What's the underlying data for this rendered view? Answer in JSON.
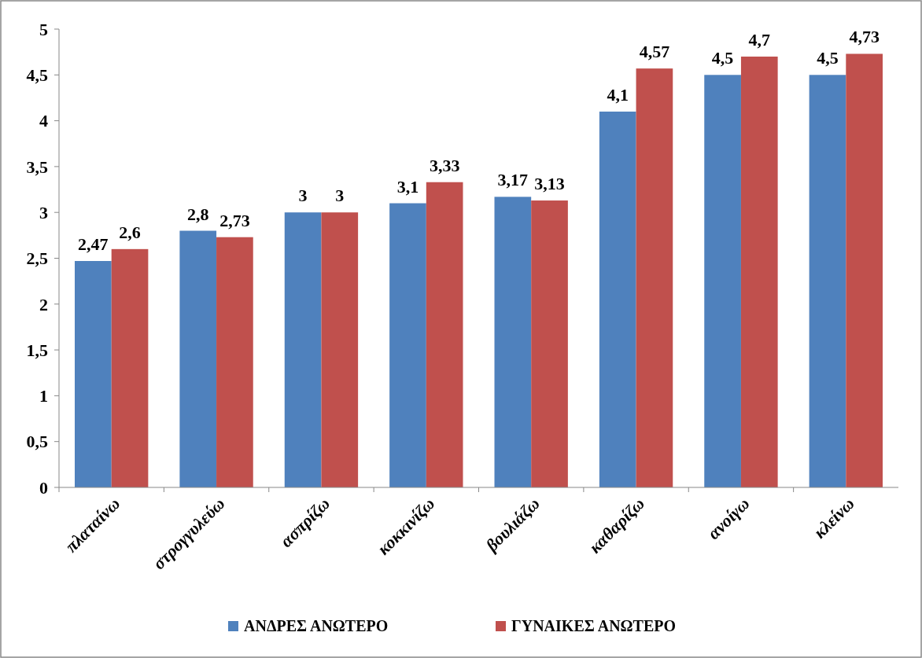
{
  "chart_data": {
    "type": "bar",
    "categories": [
      "πλαταίνω",
      "στρογγυλεύω",
      "ασπρίζω",
      "κοκκινίζω",
      "βουλιάζω",
      "καθαρίζω",
      "ανοίγω",
      "κλείνω"
    ],
    "series": [
      {
        "name": "ΑΝΔΡΕΣ ΑΝΩΤΕΡΟ",
        "color": "#4f81bd",
        "values": [
          2.47,
          2.8,
          3,
          3.1,
          3.17,
          4.1,
          4.5,
          4.5
        ],
        "value_labels": [
          "2,47",
          "2,8",
          "3",
          "3,1",
          "3,17",
          "4,1",
          "4,5",
          "4,5"
        ]
      },
      {
        "name": "ΓΥΝΑΙΚΕΣ ΑΝΩΤΕΡΟ",
        "color": "#c0504d",
        "values": [
          2.6,
          2.73,
          3,
          3.33,
          3.13,
          4.57,
          4.7,
          4.73
        ],
        "value_labels": [
          "2,6",
          "2,73",
          "3",
          "3,33",
          "3,13",
          "4,57",
          "4,7",
          "4,73"
        ]
      }
    ],
    "ylim": [
      0,
      5
    ],
    "yticks": [
      0,
      {
        "value": 0.5,
        "label": "0,5"
      },
      1,
      {
        "value": 1.5,
        "label": "1,5"
      },
      2,
      {
        "value": 2.5,
        "label": "2,5"
      },
      3,
      {
        "value": 3.5,
        "label": "3,5"
      },
      4,
      {
        "value": 4.5,
        "label": "4,5"
      },
      5
    ],
    "grid": false,
    "legend": "bottom"
  }
}
